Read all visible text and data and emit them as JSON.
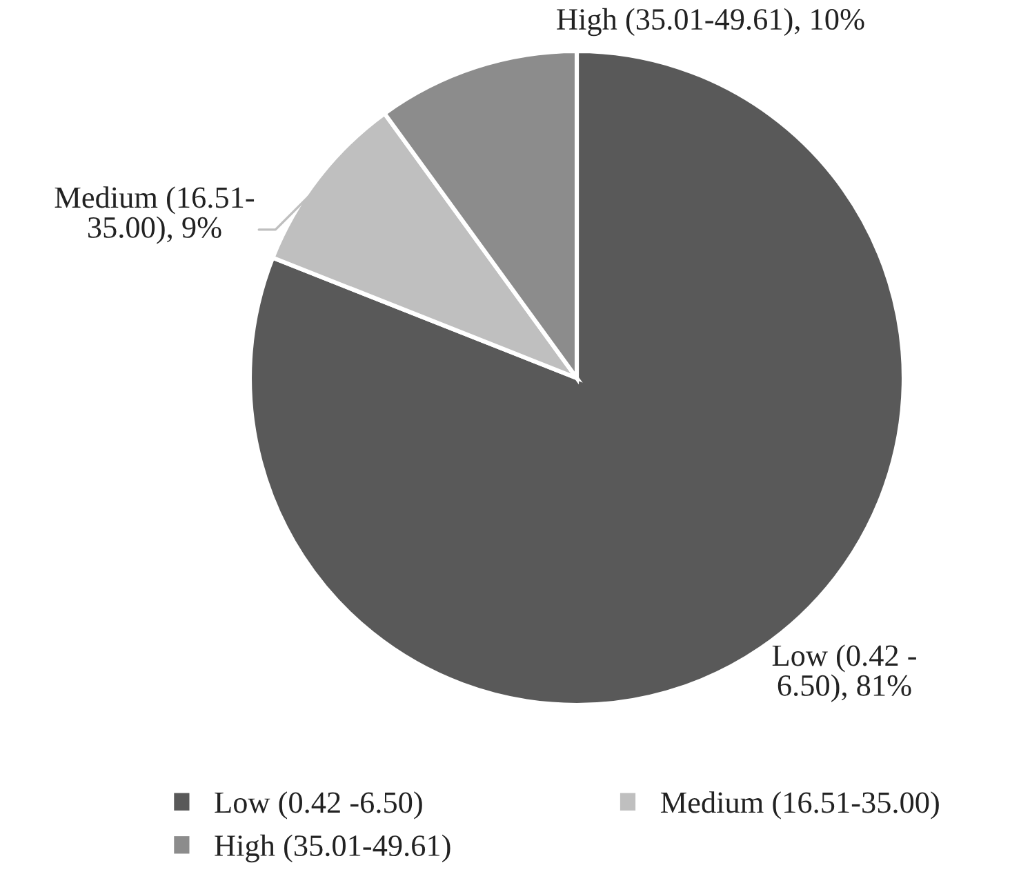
{
  "chart_data": {
    "type": "pie",
    "categories": [
      "Low (0.42 -6.50)",
      "Medium (16.51-35.00)",
      "High (35.01-49.61)"
    ],
    "values": [
      81,
      9,
      10
    ],
    "colors": [
      "#595959",
      "#bfbfbf",
      "#8c8c8c"
    ],
    "value_labels": [
      "Low (0.42 -\n6.50), 81%",
      "Medium (16.51-\n35.00), 9%",
      "High (35.01-49.61), 10%"
    ],
    "legend": "bottom"
  }
}
